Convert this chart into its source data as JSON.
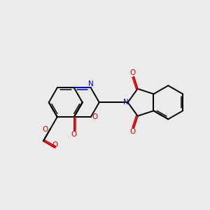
{
  "bg_color": "#ebebeb",
  "bond_color": "#000000",
  "N_color": "#0000cc",
  "O_color": "#cc0000",
  "lw": 1.4,
  "lw_dbl": 1.1,
  "sc": 0.32,
  "xlim": [
    -0.5,
    3.5
  ],
  "ylim": [
    0.2,
    2.8
  ]
}
